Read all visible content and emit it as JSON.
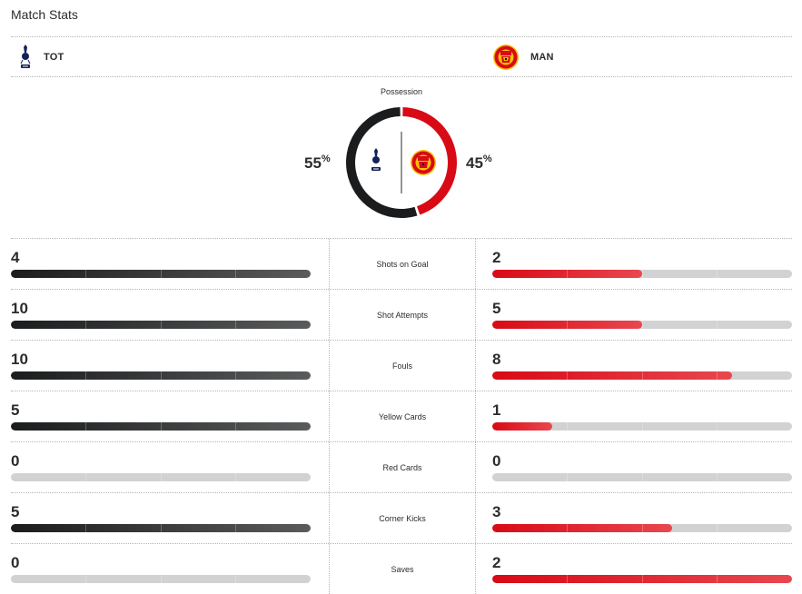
{
  "header": {
    "title": "Match Stats"
  },
  "teams": {
    "home": {
      "abbr": "TOT",
      "logo_icon": "tottenham-logo-icon",
      "color": "#1b1c1d"
    },
    "away": {
      "abbr": "MAN",
      "logo_icon": "manchester-united-logo-icon",
      "color": "#d80a16"
    }
  },
  "possession": {
    "label": "Possession",
    "home_pct": "55",
    "away_pct": "45",
    "symbol": "%",
    "home_value": 55,
    "away_value": 45
  },
  "colors": {
    "home_bar": "#1b1c1d",
    "away_bar": "#d80a16",
    "track": "#d2d2d2"
  },
  "stats": [
    {
      "label": "Shots on Goal",
      "home": "4",
      "away": "2",
      "home_fill": 1.0,
      "away_fill": 0.5
    },
    {
      "label": "Shot Attempts",
      "home": "10",
      "away": "5",
      "home_fill": 1.0,
      "away_fill": 0.5
    },
    {
      "label": "Fouls",
      "home": "10",
      "away": "8",
      "home_fill": 1.0,
      "away_fill": 0.8
    },
    {
      "label": "Yellow Cards",
      "home": "5",
      "away": "1",
      "home_fill": 1.0,
      "away_fill": 0.2
    },
    {
      "label": "Red Cards",
      "home": "0",
      "away": "0",
      "home_fill": 0.0,
      "away_fill": 0.0
    },
    {
      "label": "Corner Kicks",
      "home": "5",
      "away": "3",
      "home_fill": 1.0,
      "away_fill": 0.6
    },
    {
      "label": "Saves",
      "home": "0",
      "away": "2",
      "home_fill": 0.0,
      "away_fill": 1.0
    }
  ]
}
